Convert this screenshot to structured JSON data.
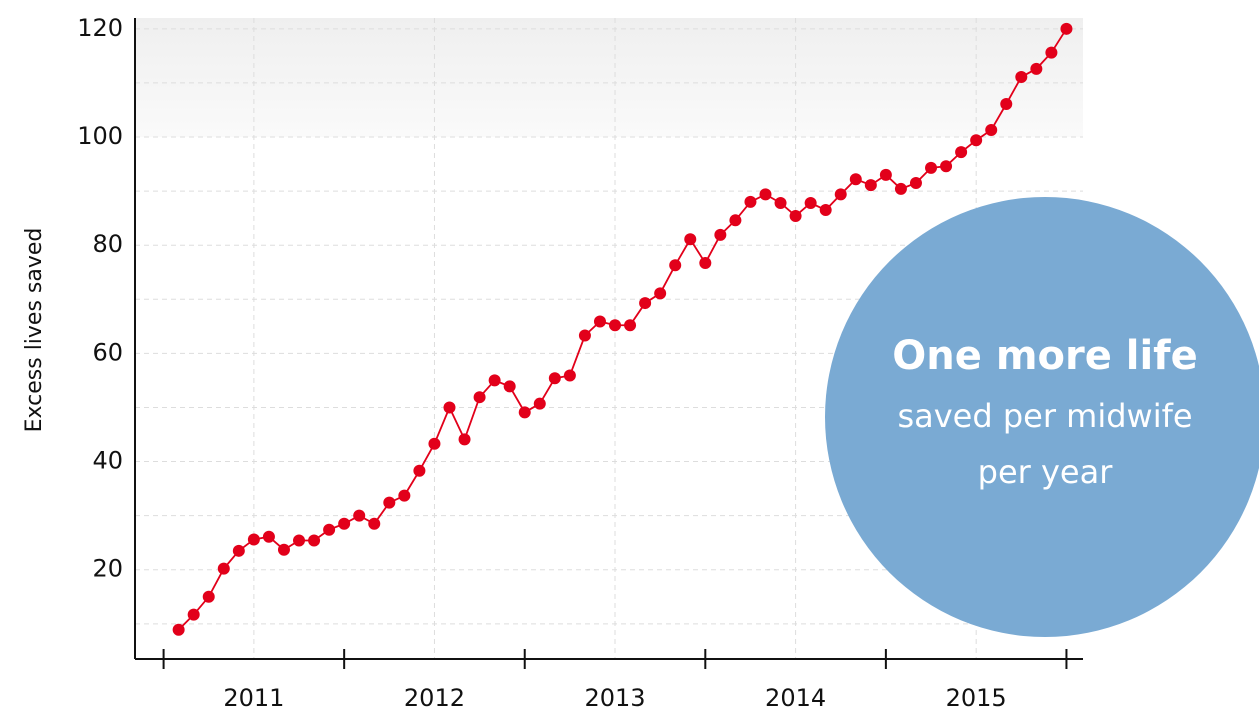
{
  "chart_data": {
    "type": "line",
    "y_label": "Excess lives saved",
    "x": [
      1,
      2,
      3,
      4,
      5,
      6,
      7,
      8,
      9,
      10,
      11,
      12,
      13,
      14,
      15,
      16,
      17,
      18,
      19,
      20,
      21,
      22,
      23,
      24,
      25,
      26,
      27,
      28,
      29,
      30,
      31,
      32,
      33,
      34,
      35,
      36,
      37,
      38,
      39,
      40,
      41,
      42,
      43,
      44,
      45,
      46,
      47,
      48,
      49,
      50,
      51,
      52,
      53,
      54,
      55,
      56,
      57,
      58,
      59,
      60
    ],
    "series": [
      {
        "name": "Excess lives saved",
        "color": "#e2001a",
        "values": [
          8.9,
          11.7,
          15,
          20.2,
          23.5,
          25.6,
          26.1,
          23.7,
          25.4,
          25.4,
          27.4,
          28.5,
          30,
          28.5,
          32.4,
          33.7,
          38.3,
          43.3,
          50,
          44.1,
          51.9,
          55,
          53.9,
          49.1,
          50.7,
          55.4,
          55.9,
          63.3,
          65.9,
          65.2,
          65.2,
          69.3,
          71.1,
          76.3,
          81.1,
          76.7,
          81.9,
          84.6,
          88,
          89.4,
          87.8,
          85.4,
          87.8,
          86.5,
          89.4,
          92.2,
          91.1,
          93,
          90.4,
          91.5,
          94.3,
          94.6,
          97.2,
          99.4,
          101.3,
          106.1,
          111.1,
          112.6,
          115.6,
          120
        ]
      }
    ],
    "xlim": [
      -1.9,
      61.1
    ],
    "ylim": [
      3.5,
      122
    ],
    "xticks": [
      0,
      12,
      24,
      36,
      48,
      60
    ],
    "x_labels": [
      {
        "value": 6,
        "label": "2011"
      },
      {
        "value": 18,
        "label": "2012"
      },
      {
        "value": 30,
        "label": "2013"
      },
      {
        "value": 42,
        "label": "2014"
      },
      {
        "value": 54,
        "label": "2015"
      }
    ],
    "yticks": [
      20,
      40,
      60,
      80,
      100,
      120
    ],
    "minor_yticks": [
      10,
      30,
      50,
      70,
      90,
      110
    ],
    "grid": true,
    "shaded_from": 100,
    "annotation": {
      "title": "One more life",
      "lines": [
        "saved per midwife",
        "per year"
      ],
      "color": "#7aaad3"
    }
  }
}
